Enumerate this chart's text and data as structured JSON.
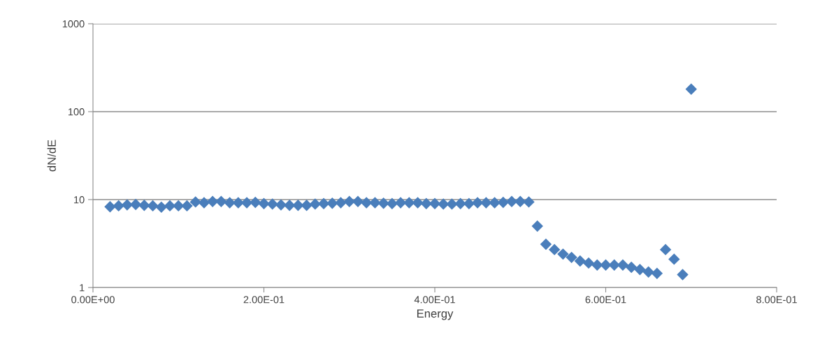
{
  "chart_data": {
    "type": "scatter",
    "xlabel": "Energy",
    "ylabel": "dN/dE",
    "x": [
      0.02,
      0.03,
      0.04,
      0.05,
      0.06,
      0.07,
      0.08,
      0.09,
      0.1,
      0.11,
      0.12,
      0.13,
      0.14,
      0.15,
      0.16,
      0.17,
      0.18,
      0.19,
      0.2,
      0.21,
      0.22,
      0.23,
      0.24,
      0.25,
      0.26,
      0.27,
      0.28,
      0.29,
      0.3,
      0.31,
      0.32,
      0.33,
      0.34,
      0.35,
      0.36,
      0.37,
      0.38,
      0.39,
      0.4,
      0.41,
      0.42,
      0.43,
      0.44,
      0.45,
      0.46,
      0.47,
      0.48,
      0.49,
      0.5,
      0.51,
      0.52,
      0.53,
      0.54,
      0.55,
      0.56,
      0.57,
      0.58,
      0.59,
      0.6,
      0.61,
      0.62,
      0.63,
      0.64,
      0.65,
      0.66,
      0.67,
      0.68,
      0.69,
      0.7
    ],
    "series": [
      {
        "color": "#4a7ebb",
        "values": [
          8.3,
          8.5,
          8.7,
          8.8,
          8.6,
          8.5,
          8.2,
          8.5,
          8.5,
          8.5,
          9.4,
          9.2,
          9.5,
          9.5,
          9.2,
          9.2,
          9.2,
          9.3,
          9.0,
          8.9,
          8.7,
          8.6,
          8.6,
          8.6,
          8.9,
          9.0,
          9.1,
          9.2,
          9.5,
          9.5,
          9.2,
          9.2,
          9.1,
          9.0,
          9.2,
          9.2,
          9.2,
          9.0,
          9.0,
          8.9,
          8.9,
          9.0,
          9.0,
          9.2,
          9.2,
          9.2,
          9.3,
          9.5,
          9.5,
          9.4,
          5.0,
          3.1,
          2.7,
          2.4,
          2.2,
          2.0,
          1.9,
          1.8,
          1.8,
          1.8,
          1.8,
          1.7,
          1.6,
          1.5,
          1.45,
          2.7,
          2.1,
          1.4,
          180
        ]
      }
    ],
    "marker": "diamond",
    "log": "y",
    "grid": "y",
    "xlim": [
      0,
      0.8
    ],
    "xticks": [
      {
        "value": 0,
        "label": "0.00E+00"
      },
      {
        "value": 0.2,
        "label": "2.00E-01"
      },
      {
        "value": 0.4,
        "label": "4.00E-01"
      },
      {
        "value": 0.6,
        "label": "6.00E-01"
      },
      {
        "value": 0.8,
        "label": "8.00E-01"
      }
    ],
    "ylim": [
      1,
      1000
    ],
    "yticks": [
      1,
      10,
      100,
      1000
    ]
  }
}
